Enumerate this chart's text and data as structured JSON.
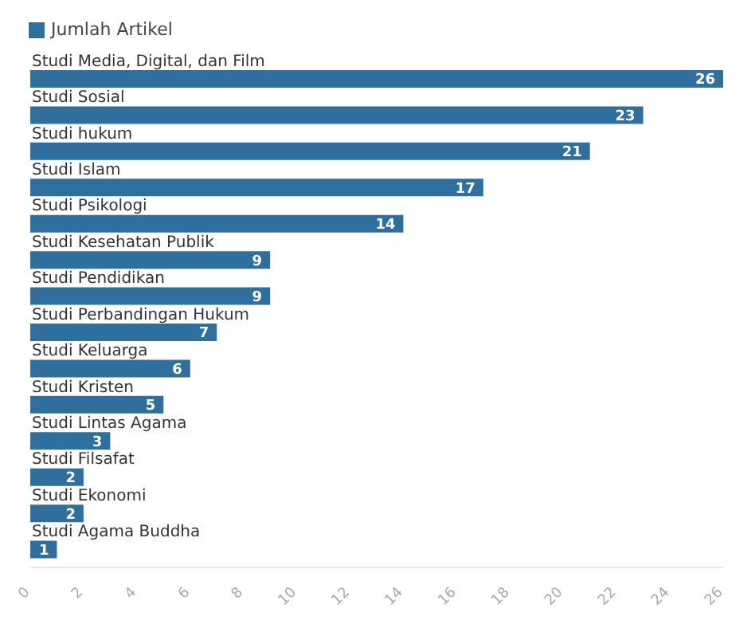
{
  "chart_data": {
    "type": "bar",
    "orientation": "horizontal",
    "categories": [
      "Studi Media, Digital, dan Film",
      "Studi Sosial",
      "Studi hukum",
      "Studi Islam",
      "Studi Psikologi",
      "Studi Kesehatan Publik",
      "Studi Pendidikan",
      "Studi Perbandingan Hukum",
      "Studi Keluarga",
      "Studi Kristen",
      "Studi Lintas Agama",
      "Studi Filsafat",
      "Studi Ekonomi",
      "Studi Agama Buddha"
    ],
    "series": [
      {
        "name": "Jumlah Artikel",
        "color": "#2e6f9e",
        "values": [
          26,
          23,
          21,
          17,
          14,
          9,
          9,
          7,
          6,
          5,
          3,
          2,
          2,
          1
        ]
      }
    ],
    "xlim": [
      0,
      26
    ],
    "xticks": [
      0,
      2,
      4,
      6,
      8,
      10,
      12,
      14,
      16,
      18,
      20,
      22,
      24,
      26
    ],
    "data_labels": true,
    "legend": "top left",
    "grid": false
  }
}
